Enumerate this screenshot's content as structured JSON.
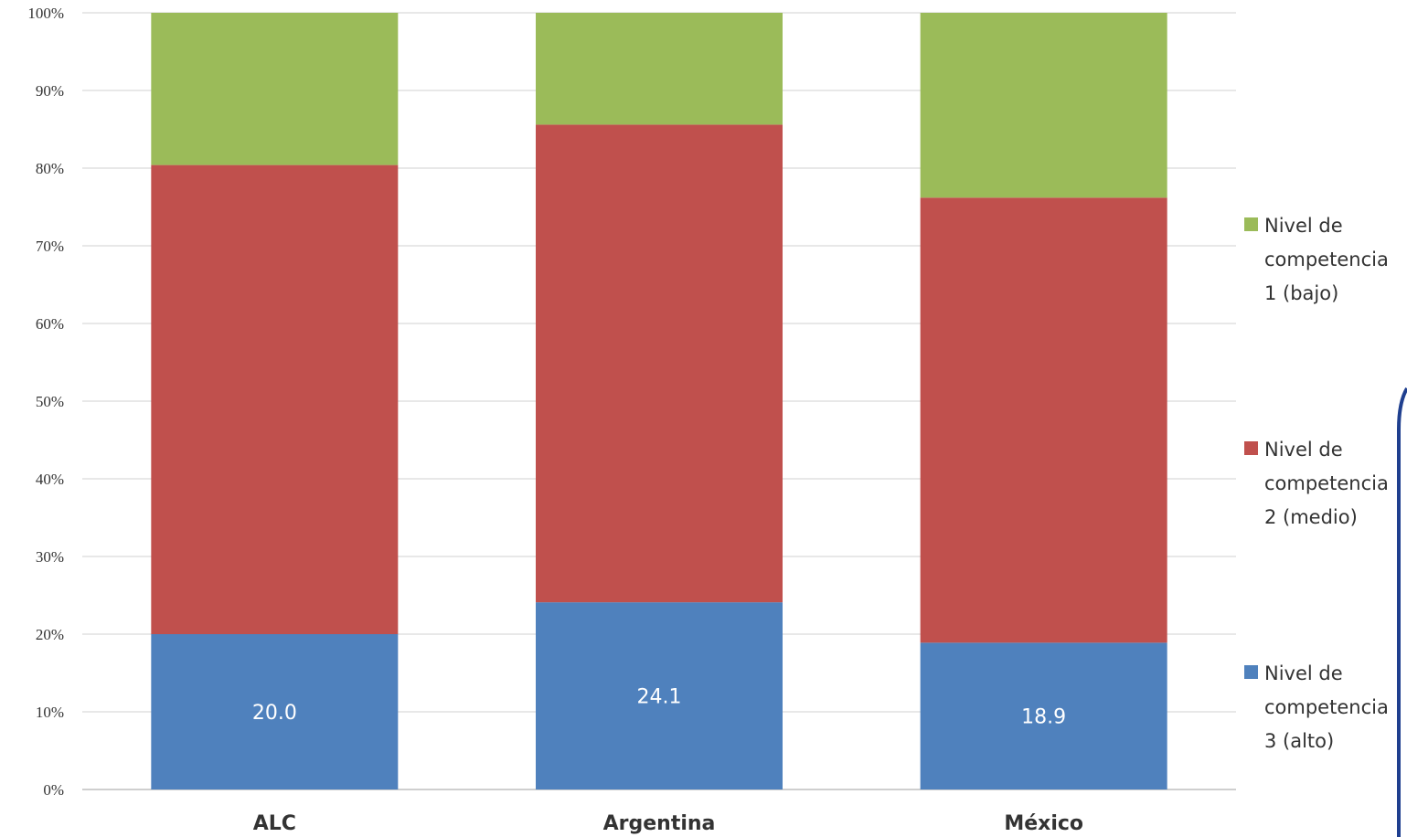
{
  "chart_data": {
    "type": "bar",
    "stacked": true,
    "categories": [
      "ALC",
      "Argentina",
      "México"
    ],
    "series": [
      {
        "name": "Nivel de competencia 3 (alto)",
        "color": "#4F81BD",
        "values": [
          20.0,
          24.1,
          18.9
        ],
        "labels": [
          "20.0",
          "24.1",
          "18.9"
        ]
      },
      {
        "name": "Nivel de competencia 2 (medio)",
        "color": "#C0504D",
        "values": [
          60.4,
          61.5,
          57.3
        ]
      },
      {
        "name": "Nivel de competencia 1 (bajo)",
        "color": "#9BBB59",
        "values": [
          19.6,
          14.4,
          23.8
        ]
      }
    ],
    "yticks": [
      "0%",
      "10%",
      "20%",
      "30%",
      "40%",
      "50%",
      "60%",
      "70%",
      "80%",
      "90%",
      "100%"
    ],
    "ylim": [
      0,
      100
    ],
    "grid": true,
    "legend": {
      "position": "right",
      "entries": [
        {
          "lines": [
            "Nivel de",
            "competencia",
            "1 (bajo)"
          ],
          "color": "#9BBB59"
        },
        {
          "lines": [
            "Nivel de",
            "competencia",
            "2 (medio)"
          ],
          "color": "#C0504D"
        },
        {
          "lines": [
            "Nivel de",
            "competencia",
            "3 (alto)"
          ],
          "color": "#4F81BD"
        }
      ]
    },
    "title": "",
    "xlabel": "",
    "ylabel": ""
  }
}
